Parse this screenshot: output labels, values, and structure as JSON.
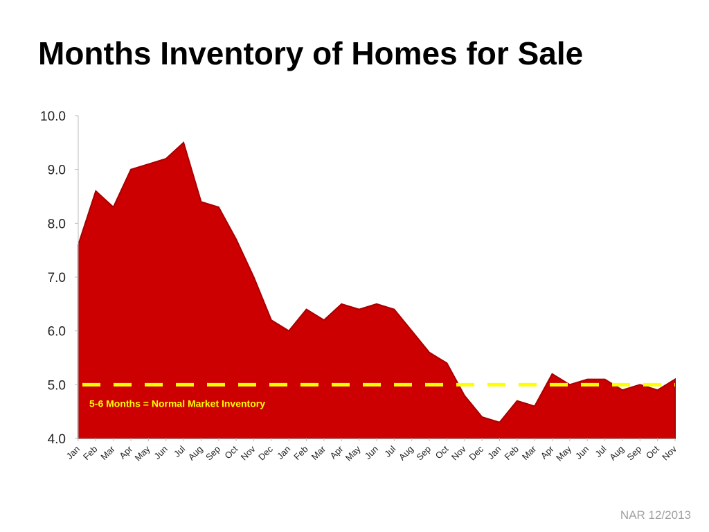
{
  "title": "Months Inventory of Homes for Sale",
  "source": "NAR 12/2013",
  "colors": {
    "area": "#cc0000",
    "area_edge": "#a80000",
    "reference": "#ffff00",
    "annotation": "#ffff00",
    "axis": "#bbbbbb"
  },
  "chart_data": {
    "type": "area",
    "title": "Months Inventory of Homes for Sale",
    "xlabel": "",
    "ylabel": "",
    "ylim": [
      4.0,
      10.0
    ],
    "yticks": [
      "4.0",
      "5.0",
      "6.0",
      "7.0",
      "8.0",
      "9.0",
      "10.0"
    ],
    "grid": false,
    "legend": "none",
    "categories": [
      "Jan",
      "Feb",
      "Mar",
      "Apr",
      "May",
      "Jun",
      "Jul",
      "Aug",
      "Sep",
      "Oct",
      "Nov",
      "Dec",
      "Jan",
      "Feb",
      "Mar",
      "Apr",
      "May",
      "Jun",
      "Jul",
      "Aug",
      "Sep",
      "Oct",
      "Nov",
      "Dec",
      "Jan",
      "Feb",
      "Mar",
      "Apr",
      "May",
      "Jun",
      "Jul",
      "Aug",
      "Sep",
      "Oct",
      "Nov"
    ],
    "series": [
      {
        "values": [
          7.6,
          8.6,
          8.3,
          9.0,
          9.1,
          9.2,
          9.5,
          8.4,
          8.3,
          7.7,
          7.0,
          6.2,
          6.0,
          6.4,
          6.2,
          6.5,
          6.4,
          6.5,
          6.4,
          6.0,
          5.6,
          5.4,
          4.8,
          4.4,
          4.3,
          4.7,
          4.6,
          5.2,
          5.0,
          5.1,
          5.1,
          4.9,
          5.0,
          4.9,
          5.1
        ]
      }
    ],
    "reference_line": {
      "value": 5.0,
      "style": "dashed"
    },
    "annotation": "5-6 Months = Normal Market Inventory"
  }
}
